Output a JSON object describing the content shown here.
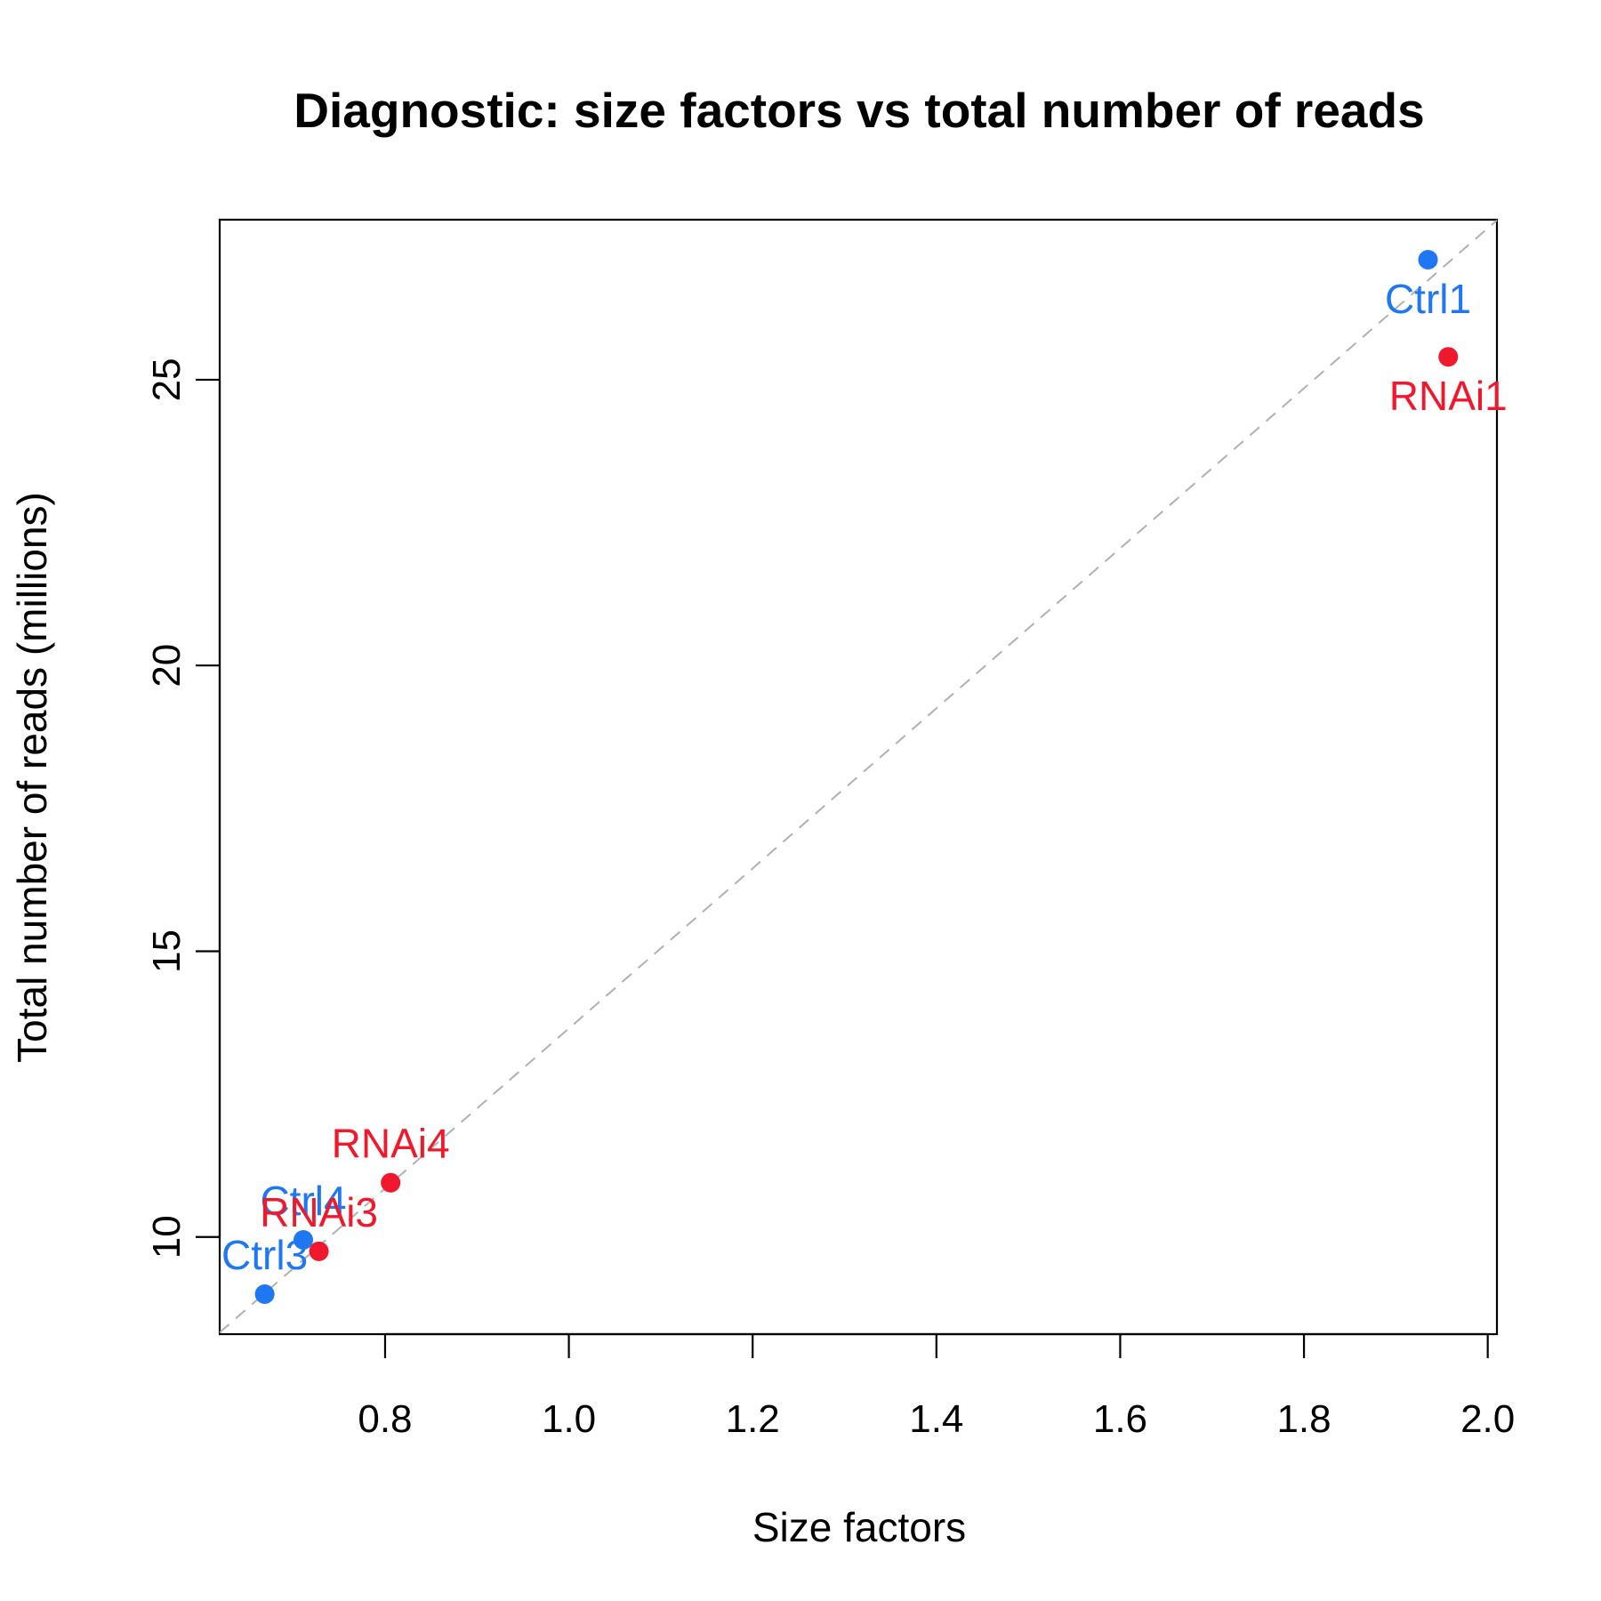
{
  "chart_data": {
    "type": "scatter",
    "title": "Diagnostic: size factors vs total number of reads",
    "xlabel": "Size factors",
    "ylabel": "Total number of reads (millions)",
    "xlim": [
      0.62,
      2.01
    ],
    "ylim": [
      8.3,
      27.8
    ],
    "x_ticks": [
      0.8,
      1.0,
      1.2,
      1.4,
      1.6,
      1.8,
      2.0
    ],
    "x_tick_labels": [
      "0.8",
      "1.0",
      "1.2",
      "1.4",
      "1.6",
      "1.8",
      "2.0"
    ],
    "y_ticks": [
      10,
      15,
      20,
      25
    ],
    "y_tick_labels": [
      "10",
      "15",
      "20",
      "25"
    ],
    "grid": false,
    "box": true,
    "reference_line": {
      "style": "dashed",
      "color": "#b0b0b0",
      "slope": 14.0,
      "intercept": -0.35
    },
    "colors": {
      "Ctrl": "#1f77f4",
      "RNAi": "#f0182d"
    },
    "series": [
      {
        "group": "Ctrl",
        "points": [
          {
            "label": "Ctrl1",
            "x": 1.935,
            "y": 27.1,
            "label_pos": "below"
          },
          {
            "label": "Ctrl4",
            "x": 0.711,
            "y": 9.95,
            "label_pos": "above"
          },
          {
            "label": "Ctrl3",
            "x": 0.669,
            "y": 9.0,
            "label_pos": "above"
          }
        ]
      },
      {
        "group": "RNAi",
        "points": [
          {
            "label": "RNAi1",
            "x": 1.957,
            "y": 25.4,
            "label_pos": "below"
          },
          {
            "label": "RNAi4",
            "x": 0.806,
            "y": 10.95,
            "label_pos": "above"
          },
          {
            "label": "RNAi3",
            "x": 0.728,
            "y": 9.75,
            "label_pos": "above"
          }
        ]
      }
    ]
  }
}
